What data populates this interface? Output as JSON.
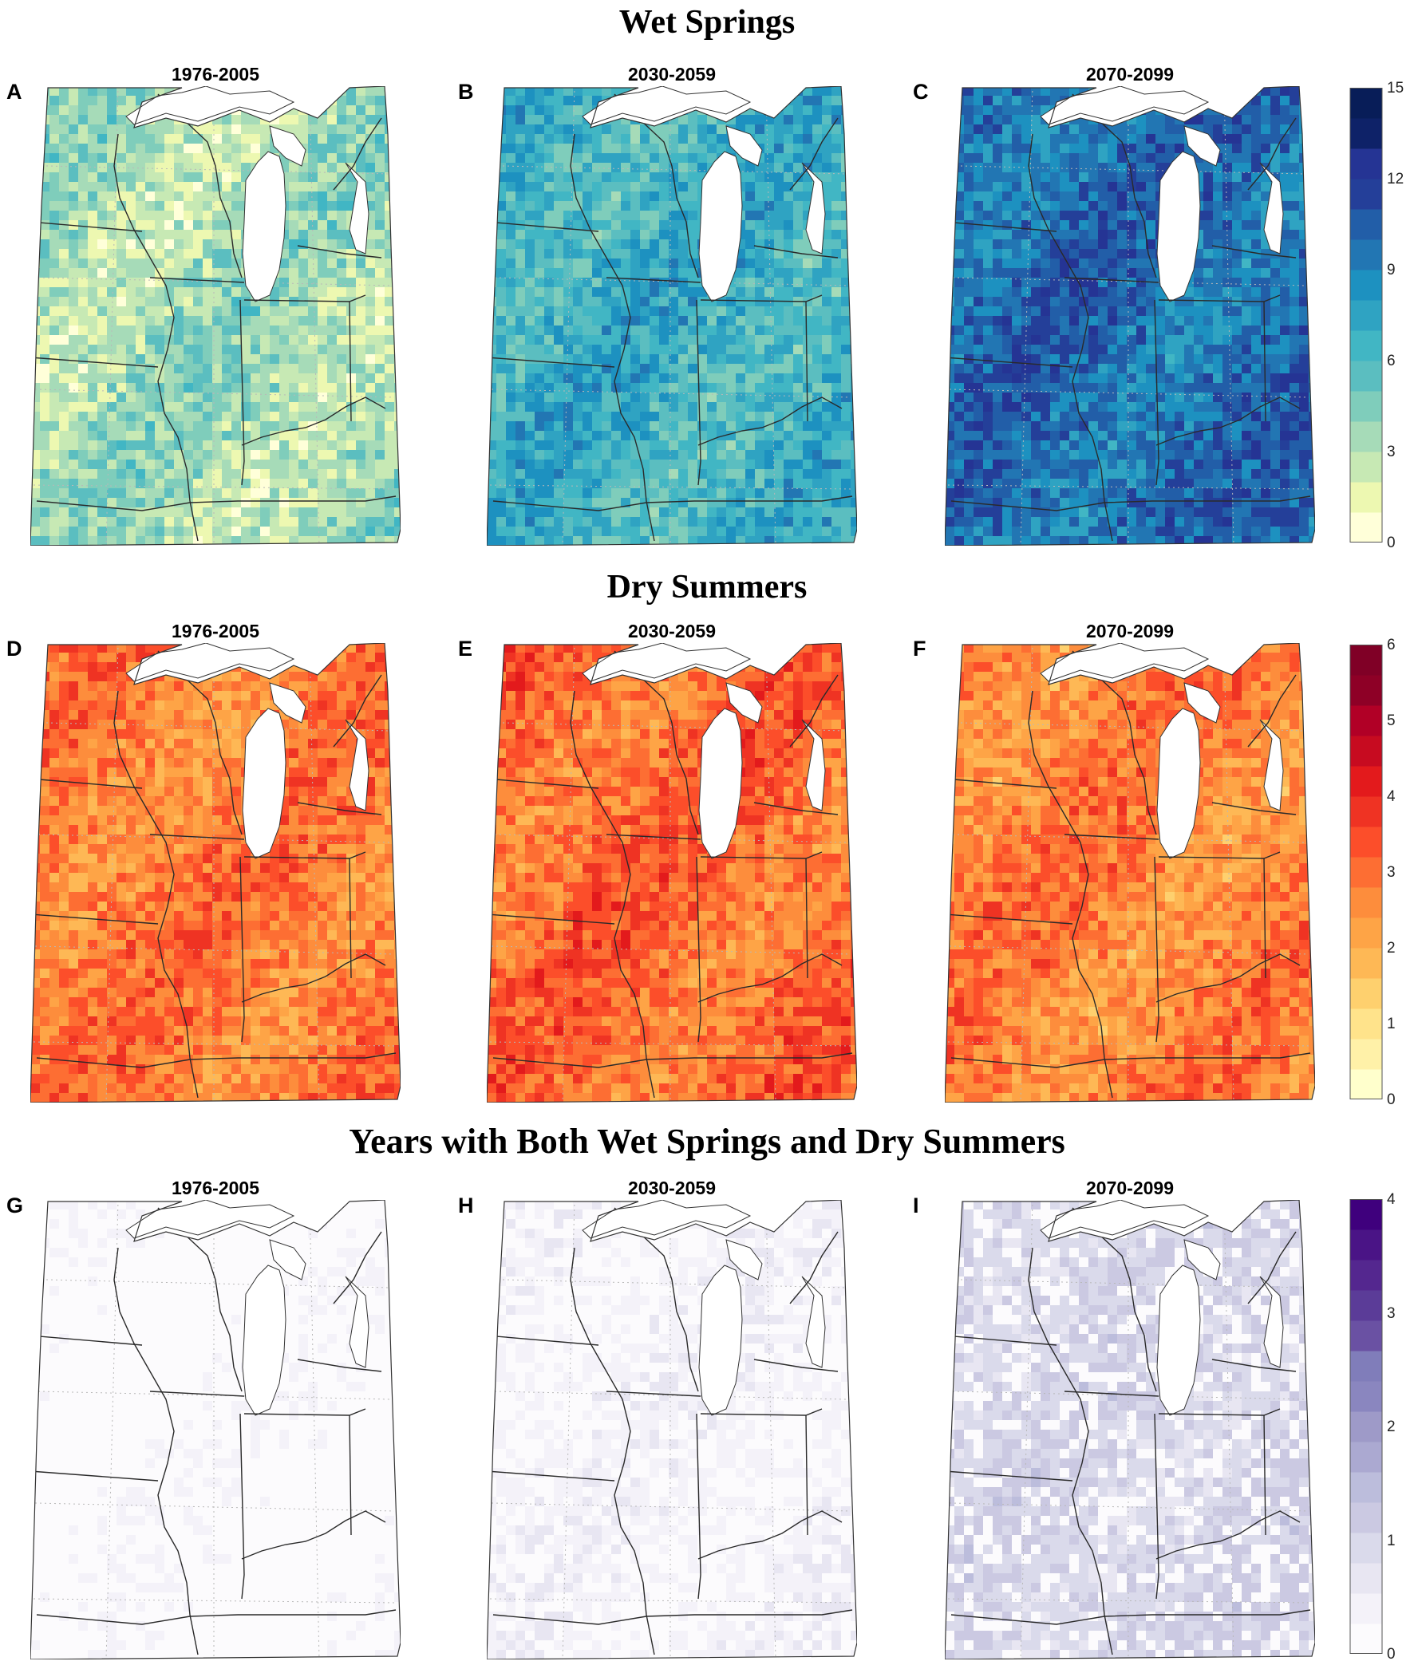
{
  "rows": [
    {
      "title": "Wet Springs",
      "scheme": "wet",
      "colors": [
        "#ffffd9",
        "#edf8b1",
        "#c7e9b4",
        "#a6dbb8",
        "#7fcdbb",
        "#5bbec0",
        "#41b6c4",
        "#2fa3c2",
        "#1d91c0",
        "#2276b3",
        "#225ea8",
        "#243f99",
        "#253494",
        "#0e2268",
        "#081d58"
      ],
      "scale_max": 15,
      "colorbar_ticks": [
        "15",
        "12",
        "9",
        "6",
        "3",
        "0"
      ],
      "panels": [
        {
          "letter": "A",
          "period": "1976-2005",
          "mean_value": 3.4
        },
        {
          "letter": "B",
          "period": "2030-2059",
          "mean_value": 6.6
        },
        {
          "letter": "C",
          "period": "2070-2099",
          "mean_value": 9.8
        }
      ]
    },
    {
      "title": "Dry Summers",
      "scheme": "dry",
      "colors": [
        "#ffffcc",
        "#fff1a8",
        "#ffe38b",
        "#fed06e",
        "#feb855",
        "#fea446",
        "#fd8d3c",
        "#fd6e33",
        "#fc4e2a",
        "#ef3323",
        "#e31a1c",
        "#c70b20",
        "#b10026",
        "#8e0026",
        "#800026"
      ],
      "scale_max": 6,
      "colorbar_ticks": [
        "6",
        "5",
        "4",
        "3",
        "2",
        "1",
        "0"
      ],
      "panels": [
        {
          "letter": "D",
          "period": "1976-2005",
          "mean_value": 2.8
        },
        {
          "letter": "E",
          "period": "2030-2059",
          "mean_value": 3.0
        },
        {
          "letter": "F",
          "period": "2070-2099",
          "mean_value": 2.7
        }
      ]
    },
    {
      "title": "Years with Both Wet Springs and Dry Summers",
      "scheme": "both",
      "colors": [
        "#fcfbfd",
        "#f4f2f9",
        "#e8e6f2",
        "#dadaeb",
        "#cbc9e2",
        "#bcbddc",
        "#aba9d1",
        "#9e9ac8",
        "#8a86bf",
        "#807dba",
        "#6a51a3",
        "#5b3c98",
        "#54278f",
        "#4a1486",
        "#3f007d"
      ],
      "scale_max": 4,
      "colorbar_ticks": [
        "4",
        "3",
        "2",
        "1",
        "0"
      ],
      "panels": [
        {
          "letter": "G",
          "period": "1976-2005",
          "mean_value": 0.1
        },
        {
          "letter": "H",
          "period": "2030-2059",
          "mean_value": 0.35
        },
        {
          "letter": "I",
          "period": "2070-2099",
          "mean_value": 1.0
        }
      ]
    }
  ]
}
